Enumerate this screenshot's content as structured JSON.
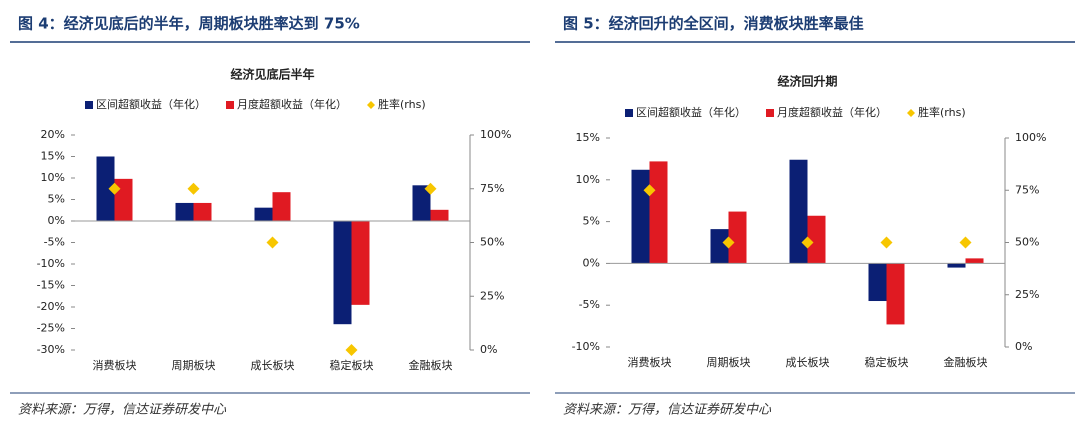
{
  "chart_data": [
    {
      "type": "bar",
      "caption": "图 4：经济见底后的半年，周期板块胜率达到 75%",
      "title": "经济见底后半年",
      "source": "资料来源：万得，信达证券研发中心",
      "categories": [
        "消费板块",
        "周期板块",
        "成长板块",
        "稳定板块",
        "金融板块"
      ],
      "series": [
        {
          "name": "区间超额收益（年化）",
          "color": "#0b1f74",
          "values": [
            15,
            4.2,
            3.1,
            -24,
            8.3
          ]
        },
        {
          "name": "月度超额收益（年化）",
          "color": "#e01a22",
          "values": [
            9.8,
            4.2,
            6.7,
            -19.5,
            2.6
          ]
        },
        {
          "name": "胜率(rhs)",
          "color": "#f7c600",
          "axis": "y2",
          "values": [
            75,
            75,
            50,
            0,
            75
          ]
        }
      ],
      "ylim": [
        -30,
        20
      ],
      "yticks": [
        {
          "value": -30,
          "label": "-30%"
        },
        {
          "value": -25,
          "label": "-25%"
        },
        {
          "value": -20,
          "label": "-20%"
        },
        {
          "value": -15,
          "label": "-15%"
        },
        {
          "value": -10,
          "label": "-10%"
        },
        {
          "value": -5,
          "label": "-5%"
        },
        {
          "value": 0,
          "label": "0%"
        },
        {
          "value": 5,
          "label": "5%"
        },
        {
          "value": 10,
          "label": "10%"
        },
        {
          "value": 15,
          "label": "15%"
        },
        {
          "value": 20,
          "label": "20%"
        }
      ],
      "y2lim": [
        0,
        100
      ],
      "y2ticks": [
        {
          "value": 0,
          "label": "0%"
        },
        {
          "value": 25,
          "label": "25%"
        },
        {
          "value": 50,
          "label": "50%"
        },
        {
          "value": 75,
          "label": "75%"
        },
        {
          "value": 100,
          "label": "100%"
        }
      ]
    },
    {
      "type": "bar",
      "caption": "图 5：经济回升的全区间，消费板块胜率最佳",
      "title": "经济回升期",
      "source": "资料来源：万得，信达证券研发中心",
      "categories": [
        "消费板块",
        "周期板块",
        "成长板块",
        "稳定板块",
        "金融板块"
      ],
      "series": [
        {
          "name": "区间超额收益（年化）",
          "color": "#0b1f74",
          "values": [
            11.2,
            4.1,
            12.4,
            -4.5,
            -0.5
          ]
        },
        {
          "name": "月度超额收益（年化）",
          "color": "#e01a22",
          "values": [
            12.2,
            6.2,
            5.7,
            -7.3,
            0.6
          ]
        },
        {
          "name": "胜率(rhs)",
          "color": "#f7c600",
          "axis": "y2",
          "values": [
            75,
            50,
            50,
            50,
            50
          ]
        }
      ],
      "ylim": [
        -10,
        15
      ],
      "yticks": [
        {
          "value": -10,
          "label": "-10%"
        },
        {
          "value": -5,
          "label": "-5%"
        },
        {
          "value": 0,
          "label": "0%"
        },
        {
          "value": 5,
          "label": "5%"
        },
        {
          "value": 10,
          "label": "10%"
        },
        {
          "value": 15,
          "label": "15%"
        }
      ],
      "y2lim": [
        0,
        100
      ],
      "y2ticks": [
        {
          "value": 0,
          "label": "0%"
        },
        {
          "value": 25,
          "label": "25%"
        },
        {
          "value": 50,
          "label": "50%"
        },
        {
          "value": 75,
          "label": "75%"
        },
        {
          "value": 100,
          "label": "100%"
        }
      ]
    }
  ]
}
